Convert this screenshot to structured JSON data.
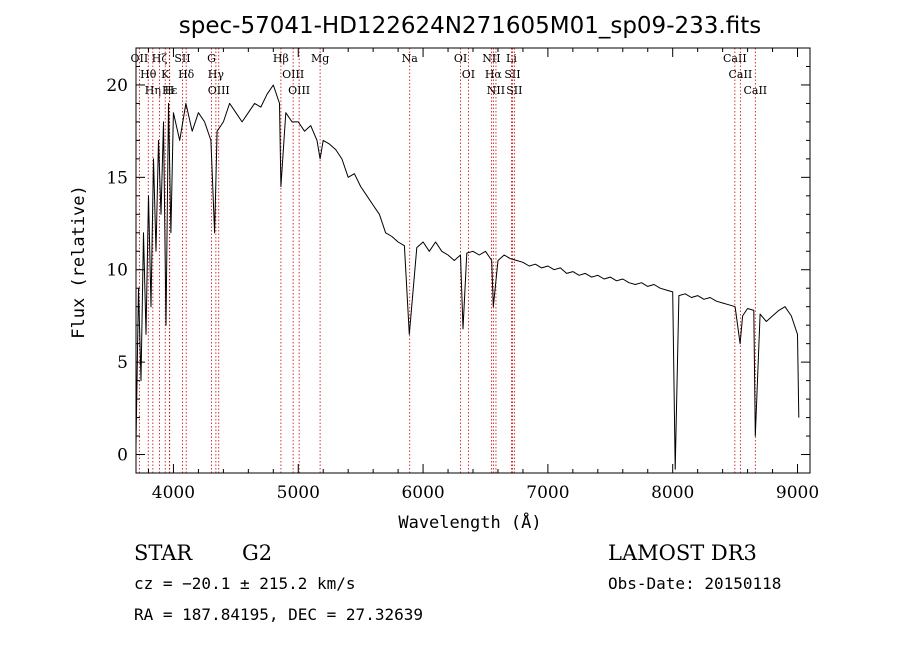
{
  "chart_data": {
    "type": "line",
    "title": "spec-57041-HD122624N271605M01_sp09-233.fits",
    "xlabel": "Wavelength (Å)",
    "ylabel": "Flux (relative)",
    "xlim": [
      3700,
      9100
    ],
    "ylim": [
      -1,
      22
    ],
    "xticks": [
      4000,
      5000,
      6000,
      7000,
      8000,
      9000
    ],
    "yticks": [
      0,
      5,
      10,
      15,
      20
    ],
    "grid": false,
    "series": [
      {
        "x": [
          3700,
          3720,
          3740,
          3760,
          3780,
          3800,
          3820,
          3840,
          3860,
          3880,
          3900,
          3920,
          3940,
          3960,
          3980,
          4000,
          4050,
          4100,
          4150,
          4200,
          4250,
          4300,
          4330,
          4350,
          4400,
          4450,
          4500,
          4550,
          4600,
          4650,
          4700,
          4750,
          4800,
          4850,
          4861,
          4900,
          4950,
          5000,
          5050,
          5100,
          5150,
          5175,
          5200,
          5250,
          5300,
          5350,
          5400,
          5450,
          5500,
          5550,
          5600,
          5650,
          5700,
          5750,
          5800,
          5850,
          5890,
          5950,
          6000,
          6050,
          6100,
          6150,
          6200,
          6250,
          6300,
          6320,
          6350,
          6400,
          6450,
          6500,
          6550,
          6563,
          6600,
          6650,
          6700,
          6750,
          6800,
          6850,
          6900,
          6950,
          7000,
          7050,
          7100,
          7150,
          7200,
          7250,
          7300,
          7350,
          7400,
          7450,
          7500,
          7550,
          7600,
          7650,
          7700,
          7750,
          7800,
          7850,
          7900,
          7950,
          8000,
          8020,
          8050,
          8100,
          8150,
          8200,
          8250,
          8300,
          8350,
          8400,
          8450,
          8500,
          8540,
          8560,
          8600,
          8650,
          8662,
          8700,
          8750,
          8800,
          8850,
          8900,
          8950,
          9000,
          9010
        ],
        "y": [
          0.5,
          9.0,
          4.0,
          12.0,
          6.5,
          14.0,
          8.0,
          16.0,
          11.0,
          17.0,
          13.0,
          18.0,
          7.0,
          19.0,
          12.0,
          18.5,
          17.0,
          19.0,
          17.5,
          18.5,
          18.0,
          17.0,
          12.0,
          17.5,
          18.0,
          19.0,
          18.5,
          18.0,
          18.5,
          19.0,
          18.8,
          19.5,
          20.0,
          19.0,
          14.5,
          18.5,
          18.0,
          18.0,
          17.5,
          17.8,
          17.0,
          16.0,
          17.0,
          16.8,
          16.5,
          16.0,
          15.0,
          15.2,
          14.5,
          14.0,
          13.5,
          13.0,
          12.0,
          11.8,
          11.5,
          11.3,
          6.5,
          11.2,
          11.5,
          11.0,
          11.5,
          11.0,
          10.8,
          10.5,
          10.8,
          6.8,
          10.9,
          11.0,
          10.8,
          11.0,
          10.5,
          8.0,
          10.5,
          10.8,
          10.6,
          10.5,
          10.4,
          10.2,
          10.3,
          10.1,
          10.2,
          10.0,
          10.1,
          9.8,
          9.9,
          9.7,
          9.8,
          9.6,
          9.7,
          9.5,
          9.6,
          9.4,
          9.5,
          9.3,
          9.2,
          9.3,
          9.1,
          9.2,
          9.0,
          8.9,
          8.8,
          -0.8,
          8.6,
          8.7,
          8.5,
          8.6,
          8.4,
          8.5,
          8.3,
          8.2,
          8.1,
          8.0,
          6.0,
          7.5,
          7.9,
          7.8,
          1.0,
          7.6,
          7.2,
          7.5,
          7.8,
          8.0,
          7.5,
          6.5,
          2.0
        ]
      }
    ],
    "line_markers": [
      {
        "label": "Hδ",
        "x": 4102
      },
      {
        "label": "Hγ",
        "x": 4340
      },
      {
        "label": "Hβ",
        "x": 4861
      },
      {
        "label": "Hα",
        "x": 6563
      },
      {
        "label": "K",
        "x": 3934
      },
      {
        "label": "H",
        "x": 3968
      },
      {
        "label": "G",
        "x": 4305
      },
      {
        "label": "Mg",
        "x": 5175
      },
      {
        "label": "Na",
        "x": 5893
      },
      {
        "label": "OI",
        "x": 6300
      },
      {
        "label": "OI",
        "x": 6363
      },
      {
        "label": "OII",
        "x": 3727
      },
      {
        "label": "OIII",
        "x": 4363
      },
      {
        "label": "OIII",
        "x": 4959
      },
      {
        "label": "OIII",
        "x": 5007
      },
      {
        "label": "NII",
        "x": 6548
      },
      {
        "label": "NII",
        "x": 6584
      },
      {
        "label": "SII",
        "x": 6716
      },
      {
        "label": "SII",
        "x": 6731
      },
      {
        "label": "SII",
        "x": 4072
      },
      {
        "label": "Li",
        "x": 6708
      },
      {
        "label": "CaII",
        "x": 8498
      },
      {
        "label": "CaII",
        "x": 8542
      },
      {
        "label": "CaII",
        "x": 8662
      },
      {
        "label": "Hε",
        "x": 3970
      },
      {
        "label": "Hζ",
        "x": 3889
      },
      {
        "label": "Hη",
        "x": 3835
      },
      {
        "label": "Hθ",
        "x": 3798
      }
    ]
  },
  "info": {
    "obj_class": "STAR",
    "subclass": "G2",
    "survey": "LAMOST DR3",
    "cz": "cz = −20.1 ± 215.2 km/s",
    "obs_date": "Obs-Date: 20150118",
    "coords": "RA = 187.84195, DEC =  27.32639"
  },
  "colors": {
    "spectrum": "#000000",
    "markers": "#cc0000",
    "axes": "#000000"
  }
}
